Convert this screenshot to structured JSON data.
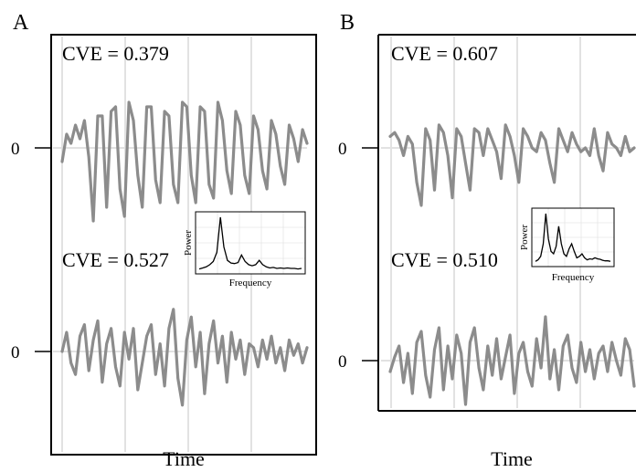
{
  "chart_data": [
    {
      "panel": "A",
      "type": "line",
      "xlabel": "Time",
      "ylabel": "",
      "yticks": [
        "0",
        "0"
      ],
      "grid": true,
      "series": [
        {
          "annotation": "CVE = 0.379",
          "values": [
            -0.3,
            0.3,
            0.1,
            0.5,
            0.2,
            0.6,
            -0.2,
            -1.6,
            0.7,
            0.7,
            -1.3,
            0.8,
            0.9,
            -0.9,
            -1.5,
            1.0,
            0.6,
            -0.6,
            -1.3,
            0.9,
            0.9,
            -0.7,
            -1.2,
            0.8,
            0.7,
            -0.8,
            -1.2,
            1.0,
            0.9,
            -0.6,
            -1.2,
            0.9,
            0.8,
            -0.8,
            -1.1,
            1.0,
            0.6,
            -0.5,
            -1.0,
            0.8,
            0.5,
            -0.6,
            -1.0,
            0.7,
            0.4,
            -0.5,
            -0.9,
            0.6,
            0.3,
            -0.4,
            -0.8,
            0.5,
            0.2,
            -0.3,
            0.4,
            0.1
          ]
        },
        {
          "annotation": "CVE = 0.527",
          "values": [
            0,
            0.5,
            -0.3,
            -0.6,
            0.4,
            0.7,
            -0.5,
            0.3,
            0.8,
            -0.8,
            0.2,
            0.6,
            -0.4,
            -0.9,
            0.5,
            -0.2,
            0.6,
            -1.0,
            -0.3,
            0.4,
            0.7,
            -0.6,
            0.2,
            -0.9,
            0.6,
            1.1,
            -0.7,
            -1.4,
            0.3,
            0.9,
            -0.4,
            0.5,
            -1.1,
            0.2,
            0.8,
            -0.3,
            0.4,
            -0.8,
            0.5,
            -0.2,
            0.3,
            -0.6,
            0.2,
            0.1,
            -0.4,
            0.3,
            -0.2,
            0.4,
            -0.3,
            0.1,
            -0.5,
            0.3,
            -0.1,
            0.2,
            -0.3,
            0.1
          ]
        }
      ],
      "inset": {
        "type": "line",
        "xlabel": "Frequency",
        "ylabel": "Power",
        "values": [
          0.04,
          0.06,
          0.08,
          0.12,
          0.18,
          0.35,
          1.0,
          0.45,
          0.2,
          0.15,
          0.14,
          0.16,
          0.3,
          0.18,
          0.12,
          0.1,
          0.12,
          0.2,
          0.12,
          0.08,
          0.06,
          0.07,
          0.05,
          0.06,
          0.05,
          0.06,
          0.05,
          0.05,
          0.04,
          0.05
        ]
      }
    },
    {
      "panel": "B",
      "type": "line",
      "xlabel": "Time",
      "ylabel": "",
      "yticks": [
        "0",
        "0"
      ],
      "grid": true,
      "series": [
        {
          "annotation": "CVE = 0.607",
          "values": [
            0.3,
            0.4,
            0.2,
            -0.2,
            0.3,
            0.1,
            -0.9,
            -1.5,
            0.5,
            0.2,
            -1.1,
            0.6,
            0.4,
            -0.2,
            -1.3,
            0.5,
            0.3,
            -0.4,
            -1.1,
            0.5,
            0.4,
            -0.2,
            0.5,
            0.2,
            -0.1,
            -0.8,
            0.6,
            0.3,
            -0.2,
            -0.9,
            0.5,
            0.3,
            0.0,
            -0.1,
            0.4,
            0.2,
            -0.4,
            -0.9,
            0.5,
            0.2,
            -0.1,
            0.4,
            0.1,
            -0.1,
            0.0,
            -0.2,
            0.5,
            -0.2,
            -0.6,
            0.4,
            0.1,
            0.0,
            -0.2,
            0.3,
            -0.1,
            0.0
          ]
        },
        {
          "annotation": "CVE = 0.510",
          "values": [
            -0.3,
            0.1,
            0.4,
            -0.6,
            0.2,
            -0.9,
            0.5,
            0.8,
            -0.4,
            -1.0,
            0.3,
            0.9,
            -0.8,
            0.4,
            -0.5,
            0.7,
            0.2,
            -1.2,
            0.5,
            0.9,
            -0.2,
            -0.8,
            0.4,
            -0.4,
            0.6,
            -0.5,
            0.1,
            0.7,
            -0.9,
            0.2,
            0.5,
            -0.3,
            -0.7,
            0.6,
            -0.2,
            1.2,
            -0.5,
            0.3,
            -0.8,
            0.4,
            0.7,
            -0.2,
            -0.6,
            0.5,
            -0.3,
            0.3,
            -0.5,
            0.2,
            0.4,
            -0.3,
            0.5,
            0.0,
            -0.4,
            0.6,
            0.3,
            -0.7
          ]
        }
      ],
      "inset": {
        "type": "line",
        "xlabel": "Frequency",
        "ylabel": "Power",
        "values": [
          0.05,
          0.08,
          0.15,
          0.4,
          1.0,
          0.5,
          0.25,
          0.2,
          0.35,
          0.75,
          0.4,
          0.2,
          0.15,
          0.3,
          0.4,
          0.25,
          0.12,
          0.15,
          0.2,
          0.12,
          0.08,
          0.1,
          0.09,
          0.12,
          0.1,
          0.09,
          0.07,
          0.06,
          0.06,
          0.05
        ]
      }
    }
  ]
}
